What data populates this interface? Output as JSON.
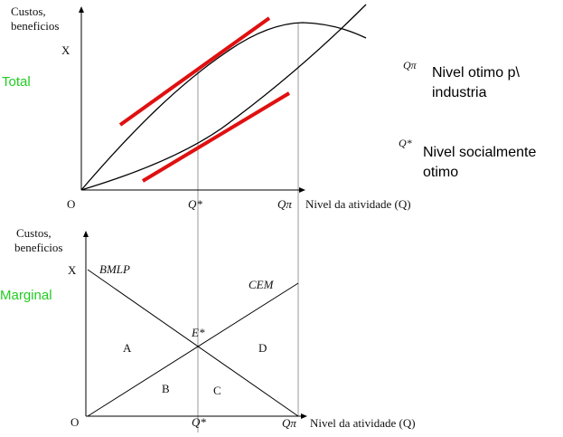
{
  "top_panel": {
    "label": "Total",
    "y_axis_label": [
      "Custos,",
      "beneficios"
    ],
    "y_mark": "X",
    "origin": "O",
    "x_marks": [
      "Q*",
      "Qπ"
    ],
    "x_axis_label": "Nivel da atividade (Q)"
  },
  "legend": [
    {
      "symbol": "Qπ",
      "text": [
        "Nivel otimo p\\",
        "industria"
      ]
    },
    {
      "symbol": "Q*",
      "text": [
        "Nivel socialmente",
        "otimo"
      ]
    }
  ],
  "bottom_panel": {
    "label": "Marginal",
    "y_axis_label": [
      "Custos,",
      "beneficios"
    ],
    "y_mark": "X",
    "origin": "O",
    "curves": [
      "BMLP",
      "CEM"
    ],
    "intersection": "E*",
    "areas": [
      "A",
      "B",
      "C",
      "D"
    ],
    "x_marks": [
      "Q*",
      "Qπ"
    ],
    "x_axis_label": "Nivel da atividade (Q)"
  }
}
